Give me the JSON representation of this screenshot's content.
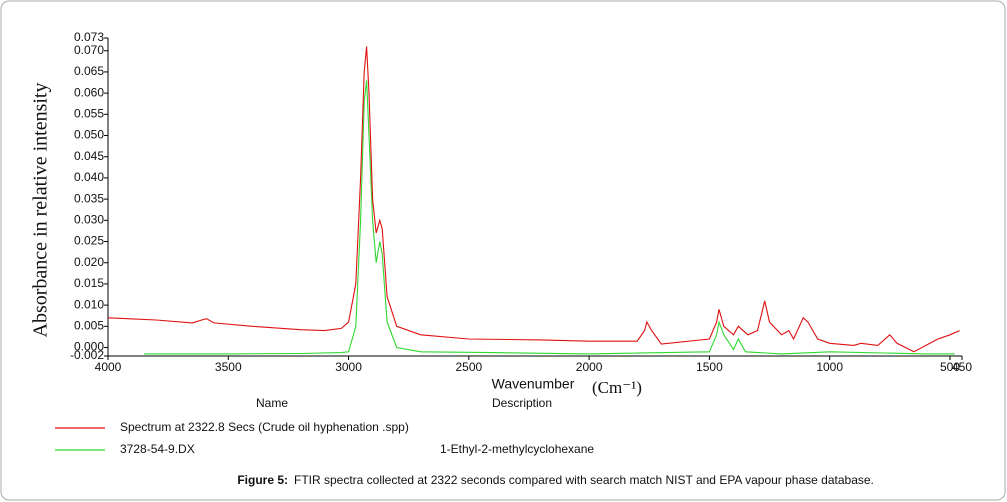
{
  "chart_data": {
    "type": "line",
    "y_label": "Absorbance in relative intensity",
    "x_label": "Wavenumber",
    "x_unit": "(Cm⁻¹)",
    "xlim": [
      4000,
      450
    ],
    "xticks": [
      4000,
      3500,
      3000,
      2500,
      2000,
      1500,
      1000,
      500,
      450
    ],
    "ylim": [
      -0.002,
      0.073
    ],
    "yticks": [
      -0.002,
      {
        "value": 0,
        "label": "0.000"
      },
      0.005,
      {
        "value": 0.01,
        "label": "0.010"
      },
      0.015,
      {
        "value": 0.02,
        "label": "0.020"
      },
      0.025,
      {
        "value": 0.03,
        "label": "0.030"
      },
      0.035,
      {
        "value": 0.04,
        "label": "0.040"
      },
      0.045,
      {
        "value": 0.05,
        "label": "0.050"
      },
      0.055,
      {
        "value": 0.06,
        "label": "0.060"
      },
      0.065,
      {
        "value": 0.07,
        "label": "0.070"
      },
      0.073
    ],
    "legend_headers": [
      "Name",
      "Description"
    ],
    "series": [
      {
        "name": "Spectrum at 2322.8 Secs (Crude oil hyphenation .spp)",
        "color": "#e01010",
        "x": [
          4000,
          3800,
          3650,
          3610,
          3590,
          3560,
          3400,
          3200,
          3100,
          3030,
          3000,
          2970,
          2950,
          2935,
          2925,
          2915,
          2900,
          2885,
          2870,
          2860,
          2840,
          2800,
          2700,
          2500,
          2200,
          2000,
          1800,
          1770,
          1760,
          1740,
          1700,
          1500,
          1470,
          1460,
          1440,
          1400,
          1380,
          1340,
          1300,
          1270,
          1250,
          1200,
          1170,
          1150,
          1110,
          1090,
          1050,
          1000,
          900,
          870,
          800,
          750,
          720,
          650,
          600,
          550,
          500,
          460
        ],
        "values": [
          0.007,
          0.0065,
          0.0058,
          0.0065,
          0.0068,
          0.0058,
          0.005,
          0.0042,
          0.004,
          0.0045,
          0.006,
          0.015,
          0.04,
          0.065,
          0.071,
          0.06,
          0.035,
          0.027,
          0.03,
          0.028,
          0.012,
          0.005,
          0.003,
          0.002,
          0.0018,
          0.0015,
          0.0015,
          0.004,
          0.006,
          0.004,
          0.0008,
          0.002,
          0.006,
          0.009,
          0.005,
          0.003,
          0.005,
          0.003,
          0.004,
          0.011,
          0.006,
          0.003,
          0.004,
          0.002,
          0.007,
          0.006,
          0.002,
          0.001,
          0.0005,
          0.001,
          0.0005,
          0.003,
          0.001,
          -0.001,
          0.0005,
          0.002,
          0.003,
          0.004
        ]
      },
      {
        "name": "3728-54-9.DX",
        "color": "#2ed82e",
        "description": "1-Ethyl-2-methylcyclohexane",
        "x": [
          3850,
          3500,
          3200,
          3030,
          3000,
          2970,
          2950,
          2935,
          2925,
          2915,
          2900,
          2885,
          2870,
          2860,
          2840,
          2800,
          2700,
          2400,
          2000,
          1500,
          1470,
          1460,
          1440,
          1400,
          1380,
          1350,
          1200,
          1000,
          600,
          480
        ],
        "values": [
          -0.0015,
          -0.0015,
          -0.0014,
          -0.0012,
          -0.001,
          0.005,
          0.03,
          0.058,
          0.063,
          0.05,
          0.03,
          0.02,
          0.025,
          0.022,
          0.006,
          0.0,
          -0.001,
          -0.0012,
          -0.0015,
          -0.001,
          0.003,
          0.006,
          0.003,
          -0.0005,
          0.002,
          -0.001,
          -0.0015,
          -0.001,
          -0.0015,
          -0.0015
        ]
      }
    ],
    "caption_label": "Figure 5:",
    "caption": "FTIR spectra collected at 2322 seconds compared with search match NIST and EPA vapour phase database."
  }
}
